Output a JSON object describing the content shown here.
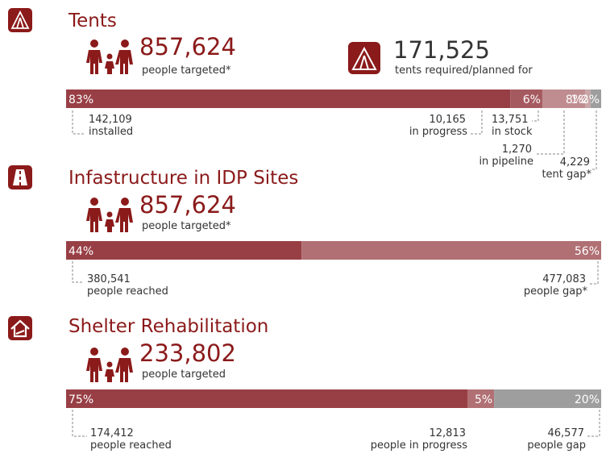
{
  "sections": [
    {
      "title": "Tents",
      "people": "857,624",
      "people_label": "people targeted*",
      "extra": {
        "value": "171,525",
        "label": "tents required/planned for"
      },
      "bar": [
        {
          "value": 83,
          "label": "83%"
        },
        {
          "value": 6,
          "label": "6%"
        },
        {
          "value": 8,
          "label": "8%"
        },
        {
          "value": 1,
          "label": "1%"
        },
        {
          "value": 2,
          "label": "2%"
        }
      ],
      "notes": [
        {
          "value": "142,109",
          "label": "installed"
        },
        {
          "value": "10,165",
          "label": "in progress"
        },
        {
          "value": "13,751",
          "label": "in stock"
        },
        {
          "value": "1,270",
          "label": "in pipeline"
        },
        {
          "value": "4,229",
          "label": "tent gap*"
        }
      ]
    },
    {
      "title": "Infastructure in IDP Sites",
      "people": "857,624",
      "people_label": "people targeted*",
      "bar": [
        {
          "value": 44,
          "label": "44%"
        },
        {
          "value": 56,
          "label": "56%"
        }
      ],
      "notes": [
        {
          "value": "380,541",
          "label": "people reached"
        },
        {
          "value": "477,083",
          "label": "people gap*"
        }
      ]
    },
    {
      "title": "Shelter Rehabilitation",
      "people": "233,802",
      "people_label": "people targeted",
      "bar": [
        {
          "value": 75,
          "label": "75%"
        },
        {
          "value": 5,
          "label": "5%"
        },
        {
          "value": 20,
          "label": "20%"
        }
      ],
      "notes": [
        {
          "value": "174,412",
          "label": "people reached"
        },
        {
          "value": "12,813",
          "label": "people in progress"
        },
        {
          "value": "46,577",
          "label": "people gap"
        }
      ]
    }
  ]
}
